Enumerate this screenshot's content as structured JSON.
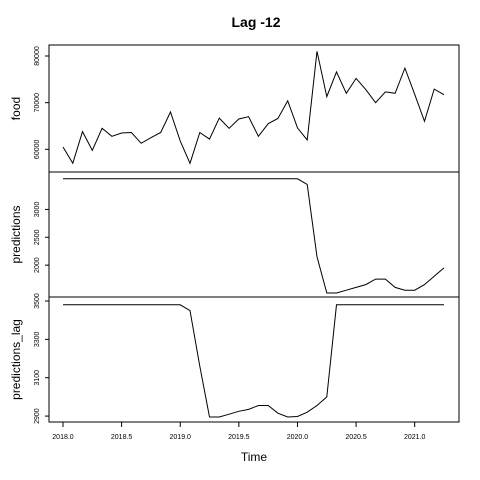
{
  "chart_data": {
    "type": "line",
    "title": "Lag  -12",
    "xlabel": "Time",
    "x": [
      2018.0,
      2018.0833,
      2018.1667,
      2018.25,
      2018.3333,
      2018.4167,
      2018.5,
      2018.5833,
      2018.6667,
      2018.75,
      2018.8333,
      2018.9167,
      2019.0,
      2019.0833,
      2019.1667,
      2019.25,
      2019.3333,
      2019.4167,
      2019.5,
      2019.5833,
      2019.6667,
      2019.75,
      2019.8333,
      2019.9167,
      2020.0,
      2020.0833,
      2020.1667,
      2020.25,
      2020.3333,
      2020.4167,
      2020.5,
      2020.5833,
      2020.6667,
      2020.75,
      2020.8333,
      2020.9167,
      2021.0,
      2021.0833,
      2021.1667,
      2021.25
    ],
    "xlim": [
      2018.0,
      2021.25
    ],
    "xticks": [
      2018.0,
      2018.5,
      2019.0,
      2019.5,
      2020.0,
      2020.5,
      2021.0
    ],
    "xtick_labels": [
      "2018.0",
      "2018.5",
      "2019.0",
      "2019.5",
      "2020.0",
      "2020.5",
      "2021.0"
    ],
    "grid": false,
    "panels": [
      {
        "ylabel": "food",
        "ylim": [
          56000,
          81500
        ],
        "yticks": [
          60000,
          70000,
          80000
        ],
        "ytick_labels": [
          "60000",
          "70000",
          "80000"
        ],
        "values": [
          60500,
          57000,
          63800,
          59800,
          64500,
          62800,
          63500,
          63600,
          61300,
          62500,
          63600,
          68000,
          61800,
          57000,
          63600,
          62200,
          66700,
          64500,
          66500,
          67000,
          62800,
          65500,
          66600,
          70400,
          64600,
          62000,
          81000,
          71300,
          76600,
          72000,
          75200,
          72800,
          70000,
          72300,
          72000,
          77400,
          71800,
          66000,
          72900,
          71700
        ]
      },
      {
        "ylabel": "predictions",
        "ylim": [
          1500,
          3600
        ],
        "yticks": [
          2000,
          2500,
          3000
        ],
        "ytick_labels": [
          "2000",
          "2500",
          "3000"
        ],
        "values": [
          3550,
          3550,
          3550,
          3550,
          3550,
          3550,
          3550,
          3550,
          3550,
          3550,
          3550,
          3550,
          3550,
          3550,
          3550,
          3550,
          3550,
          3550,
          3550,
          3550,
          3550,
          3550,
          3550,
          3550,
          3550,
          3450,
          2150,
          1500,
          1500,
          1550,
          1600,
          1650,
          1750,
          1750,
          1600,
          1550,
          1550,
          1650,
          1800,
          1950
        ]
      },
      {
        "ylabel": "predictions_lag",
        "ylim": [
          2890,
          3500
        ],
        "yticks": [
          2900,
          3100,
          3300,
          3500
        ],
        "ytick_labels": [
          "2900",
          "3100",
          "3300",
          "3500"
        ],
        "values": [
          3480,
          3480,
          3480,
          3480,
          3480,
          3480,
          3480,
          3480,
          3480,
          3480,
          3480,
          3480,
          3480,
          3450,
          3160,
          2895,
          2895,
          2910,
          2925,
          2935,
          2955,
          2955,
          2915,
          2895,
          2898,
          2920,
          2955,
          3000,
          3480,
          3480,
          3480,
          3480,
          3480,
          3480,
          3480,
          3480,
          3480,
          3480,
          3480,
          3480
        ]
      }
    ]
  }
}
